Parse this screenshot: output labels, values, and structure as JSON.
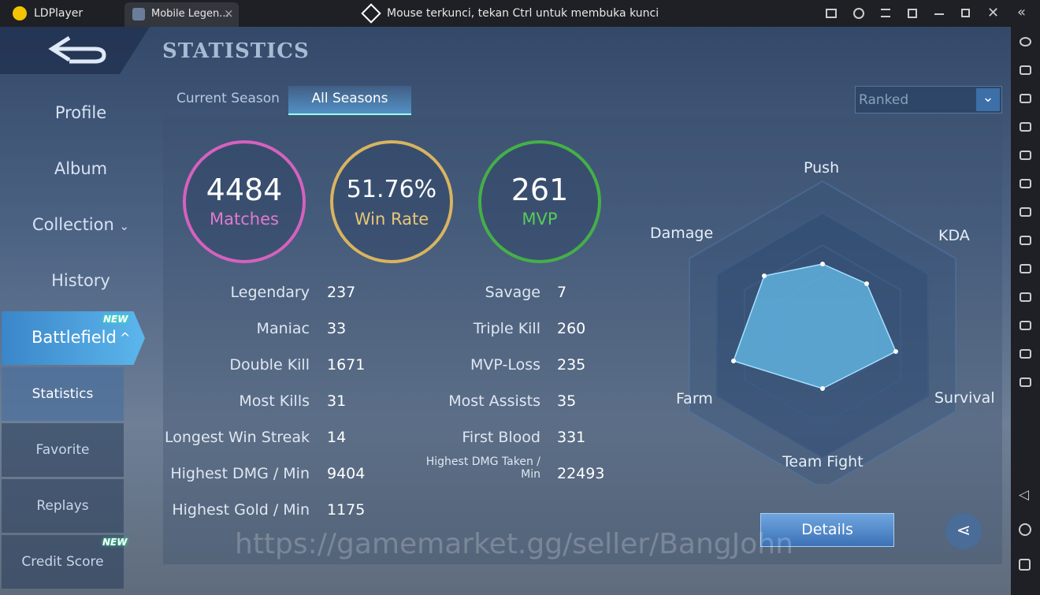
{
  "window": {
    "app_name": "LDPlayer",
    "tab_title": "Mobile Legen...",
    "notice": "Mouse terkunci, tekan Ctrl untuk membuka kunci"
  },
  "menu": {
    "items": [
      {
        "label": "Profile"
      },
      {
        "label": "Album"
      },
      {
        "label": "Collection"
      },
      {
        "label": "History"
      },
      {
        "label": "Battlefield",
        "badge": "NEW"
      },
      {
        "label": "Statistics"
      },
      {
        "label": "Favorite"
      },
      {
        "label": "Replays"
      },
      {
        "label": "Credit Score",
        "badge": "NEW"
      }
    ]
  },
  "header": {
    "title": "STATISTICS"
  },
  "tabs": [
    "Current Season",
    "All Seasons"
  ],
  "filter": "Ranked",
  "summary": [
    {
      "value": 4484,
      "label": "Matches"
    },
    {
      "value": "51.76%",
      "label": "Win Rate"
    },
    {
      "value": 261,
      "label": "MVP"
    }
  ],
  "stats": {
    "left": [
      {
        "label": "Legendary",
        "value": 237
      },
      {
        "label": "Maniac",
        "value": 33
      },
      {
        "label": "Double Kill",
        "value": 1671
      },
      {
        "label": "Most Kills",
        "value": 31
      },
      {
        "label": "Longest Win Streak",
        "value": 14
      },
      {
        "label": "Highest DMG / Min",
        "value": 9404
      },
      {
        "label": "Highest Gold / Min",
        "value": 1175
      }
    ],
    "right": [
      {
        "label": "Savage",
        "value": 7
      },
      {
        "label": "Triple Kill",
        "value": 260
      },
      {
        "label": "MVP-Loss",
        "value": 235
      },
      {
        "label": "Most Assists",
        "value": 35
      },
      {
        "label": "First Blood",
        "value": 331
      },
      {
        "label": "Highest DMG Taken / Min",
        "value": 22493
      }
    ]
  },
  "radar": {
    "axes": [
      "Push",
      "KDA",
      "Survival",
      "Team Fight",
      "Farm",
      "Damage"
    ]
  },
  "button": "Details",
  "watermark": "https://gamemarket.gg/seller/BangJohn"
}
